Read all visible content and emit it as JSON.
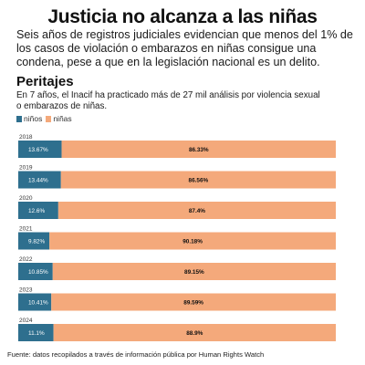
{
  "header": {
    "title": "Justicia no alcanza a las niñas",
    "subtitle": "Seis años de registros judiciales evidencian que menos del 1% de los casos de violación o embarazos en niñas consigue una condena, pese a que en la legislación nacional es un delito."
  },
  "section": {
    "title": "Peritajes",
    "description": "En 7 años, el Inacif ha practicado más de 27 mil análisis por violencia sexual o embarazos de niñas."
  },
  "colors": {
    "ninos": "#2e6f8e",
    "ninas": "#f4a97b"
  },
  "chart_data": {
    "type": "bar",
    "orientation": "horizontal",
    "stacked": true,
    "percent": true,
    "categories": [
      "2018",
      "2019",
      "2020",
      "2021",
      "2022",
      "2023",
      "2024"
    ],
    "series": [
      {
        "name": "niños",
        "values": [
          13.67,
          13.44,
          12.6,
          9.82,
          10.85,
          10.41,
          11.1
        ],
        "labels": [
          "13.67%",
          "13.44%",
          "12.6%",
          "9.82%",
          "10.85%",
          "10.41%",
          "11.1%"
        ]
      },
      {
        "name": "niñas",
        "values": [
          86.33,
          86.56,
          87.4,
          90.18,
          89.15,
          89.59,
          88.9
        ],
        "labels": [
          "86.33%",
          "86.56%",
          "87.4%",
          "90.18%",
          "89.15%",
          "89.59%",
          "88.9%"
        ]
      }
    ],
    "xlim": [
      0,
      100
    ],
    "legend": "top-left",
    "grid": false
  },
  "source": "Fuente: datos recopilados a través de información pública por Human Rights Watch"
}
